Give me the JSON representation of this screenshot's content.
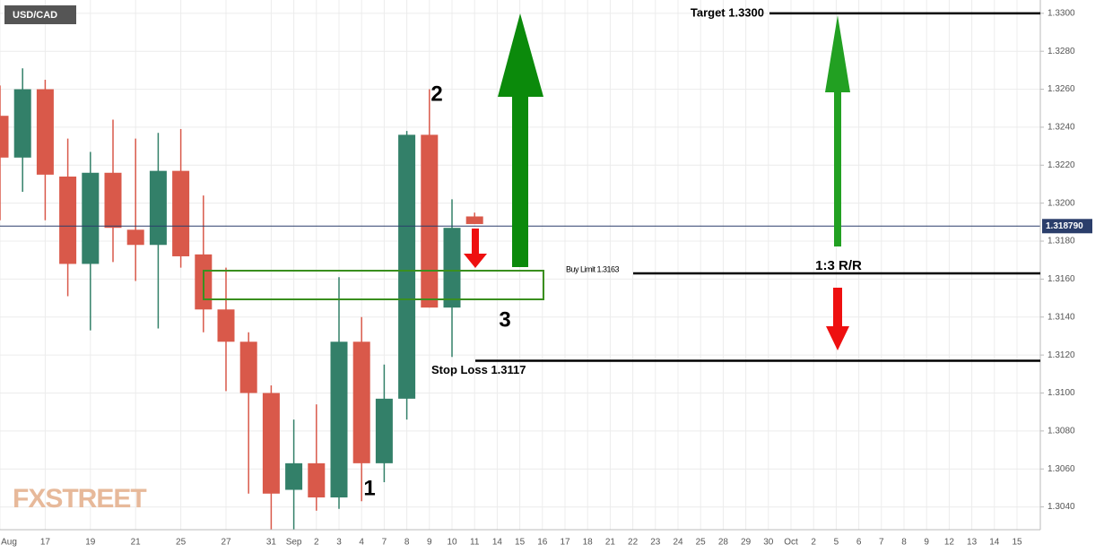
{
  "chart_data": {
    "type": "candlestick",
    "symbol": "USD/CAD",
    "watermark": "FXSTREET",
    "categories": [
      "Aug",
      null,
      "17",
      null,
      "19",
      null,
      "21",
      null,
      "25",
      null,
      "27",
      null,
      "31",
      "Sep",
      "2",
      "3",
      "4",
      "7",
      "8",
      "9",
      "10",
      "11",
      "14",
      "15",
      "16",
      "17",
      "18",
      "21",
      "22",
      "23",
      "24",
      "25",
      "28",
      "29",
      "30",
      "Oct",
      "2",
      "5",
      "6",
      "7",
      "8",
      "9",
      "12",
      "13",
      "14",
      "15"
    ],
    "series": [
      {
        "name": "USD/CAD",
        "up_color": "#338069",
        "down_color": "#d9594a",
        "open": [
          1.3246,
          1.3224,
          1.326,
          1.3214,
          1.3168,
          1.3216,
          1.3186,
          1.3178,
          1.3217,
          1.3173,
          1.3144,
          1.3127,
          1.31,
          1.3049,
          1.3063,
          1.3045,
          1.3127,
          1.3063,
          1.3097,
          1.3236,
          1.3145,
          1.3193,
          null,
          null,
          null,
          null,
          null,
          null,
          null,
          null,
          null,
          null,
          null,
          null,
          null,
          null,
          null,
          null,
          null,
          null,
          null,
          null,
          null,
          null,
          null,
          null
        ],
        "high": [
          1.3262,
          1.3271,
          1.3265,
          1.3234,
          1.3227,
          1.3244,
          1.3234,
          1.3237,
          1.3239,
          1.3204,
          1.3166,
          1.3132,
          1.3104,
          1.3086,
          1.3094,
          1.3161,
          1.314,
          1.3115,
          1.3238,
          1.326,
          1.3202,
          1.3195,
          null,
          null,
          null,
          null,
          null,
          null,
          null,
          null,
          null,
          null,
          null,
          null,
          null,
          null,
          null,
          null,
          null,
          null,
          null,
          null,
          null,
          null,
          null,
          null
        ],
        "low": [
          1.3191,
          1.3206,
          1.3191,
          1.3151,
          1.3133,
          1.3169,
          1.3159,
          1.3134,
          1.3166,
          1.3132,
          1.3101,
          1.3047,
          1.3027,
          1.3027,
          1.3038,
          1.3039,
          1.3043,
          1.3053,
          1.3086,
          1.3145,
          1.3119,
          1.3189,
          null,
          null,
          null,
          null,
          null,
          null,
          null,
          null,
          null,
          null,
          null,
          null,
          null,
          null,
          null,
          null,
          null,
          null,
          null,
          null,
          null,
          null,
          null,
          null
        ],
        "close": [
          1.3224,
          1.326,
          1.3215,
          1.3168,
          1.3216,
          1.3187,
          1.3178,
          1.3217,
          1.3172,
          1.3144,
          1.3127,
          1.31,
          1.3047,
          1.3063,
          1.3045,
          1.3127,
          1.3063,
          1.3097,
          1.3236,
          1.3145,
          1.3187,
          1.3189,
          null,
          null,
          null,
          null,
          null,
          null,
          null,
          null,
          null,
          null,
          null,
          null,
          null,
          null,
          null,
          null,
          null,
          null,
          null,
          null,
          null,
          null,
          null,
          null
        ]
      }
    ],
    "ylim": [
      1.3028,
      1.3307
    ],
    "yticks": [
      {
        "value": 1.304,
        "label": "1.3040"
      },
      {
        "value": 1.306,
        "label": "1.3060"
      },
      {
        "value": 1.308,
        "label": "1.3080"
      },
      {
        "value": 1.31,
        "label": "1.3100"
      },
      {
        "value": 1.312,
        "label": "1.3120"
      },
      {
        "value": 1.314,
        "label": "1.3140"
      },
      {
        "value": 1.316,
        "label": "1.3160"
      },
      {
        "value": 1.318,
        "label": "1.3180"
      },
      {
        "value": 1.32,
        "label": "1.3200"
      },
      {
        "value": 1.322,
        "label": "1.3220"
      },
      {
        "value": 1.324,
        "label": "1.3240"
      },
      {
        "value": 1.326,
        "label": "1.3260"
      },
      {
        "value": 1.328,
        "label": "1.3280"
      },
      {
        "value": 1.33,
        "label": "1.3300"
      }
    ],
    "grid": true,
    "last_price": {
      "value": 1.31879,
      "label": "1.318790"
    },
    "levels": [
      {
        "value": 1.33,
        "label": "Target 1.3300"
      },
      {
        "value": 1.3163,
        "label": "Buy Limit 1.3163"
      },
      {
        "value": 1.3117,
        "label": "Stop Loss 1.3117"
      }
    ],
    "annotations": [
      "1",
      "2",
      "3",
      "1:3 R/R"
    ]
  }
}
